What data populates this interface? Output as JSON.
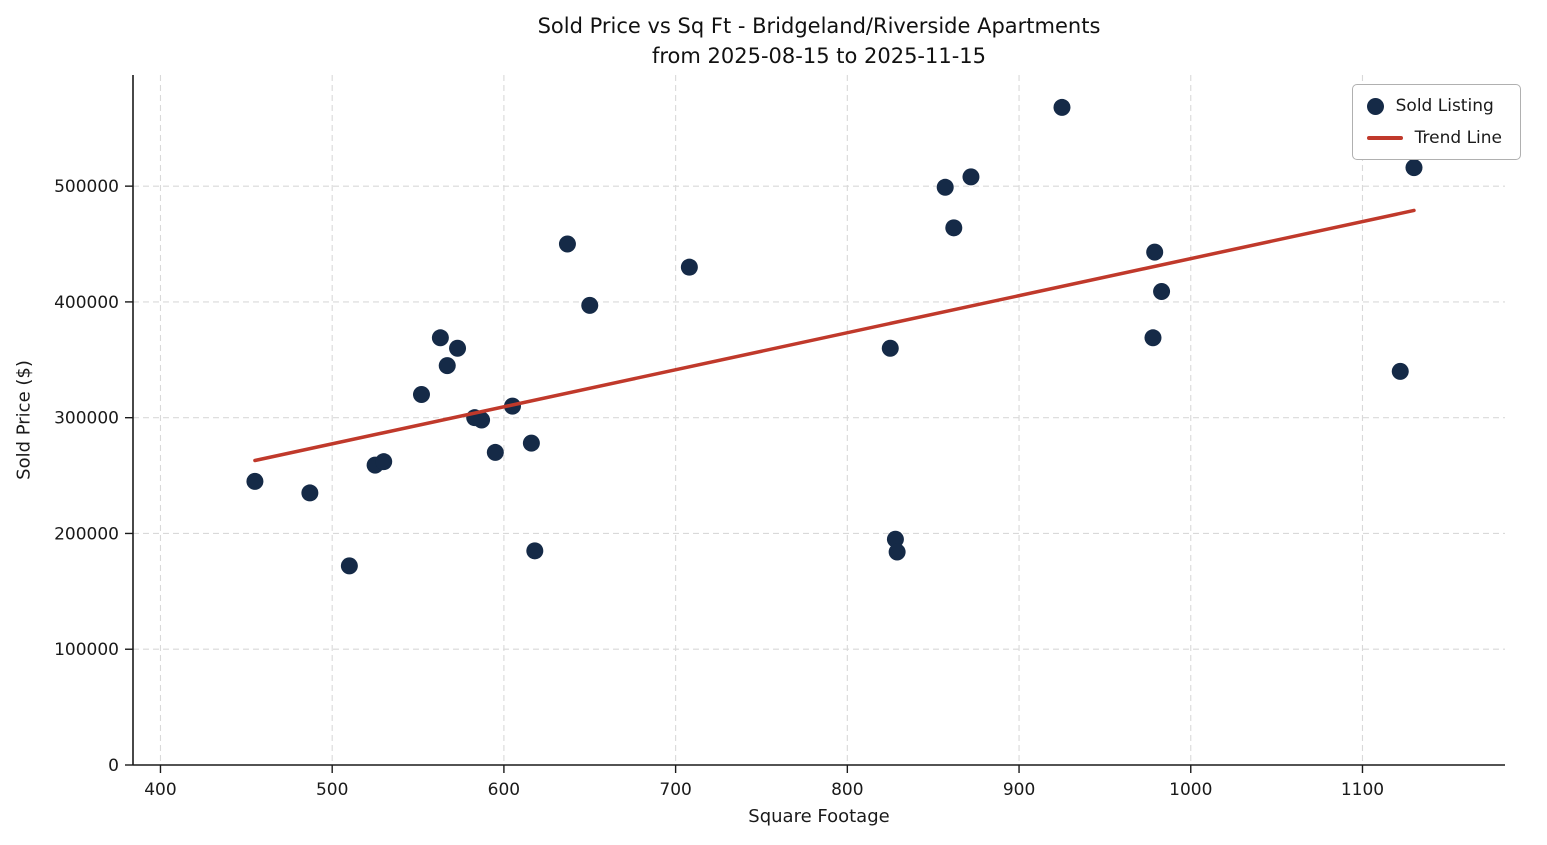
{
  "chart_data": {
    "type": "scatter",
    "title": "Sold Price vs Sq Ft - Bridgeland/Riverside Apartments",
    "subtitle": "from 2025-08-15 to 2025-11-15",
    "xlabel": "Square Footage",
    "ylabel": "Sold Price ($)",
    "xlim": [
      384,
      1183
    ],
    "ylim": [
      0,
      596000
    ],
    "x_ticks": [
      400,
      500,
      600,
      700,
      800,
      900,
      1000,
      1100
    ],
    "y_ticks": [
      0,
      100000,
      200000,
      300000,
      400000,
      500000
    ],
    "grid": "dashed",
    "legend": {
      "position": "upper right",
      "entries": [
        {
          "label": "Sold Listing",
          "type": "marker",
          "color": "#152a47"
        },
        {
          "label": "Trend Line",
          "type": "line",
          "color": "#c0392b"
        }
      ]
    },
    "series": [
      {
        "name": "Sold Listing",
        "type": "scatter",
        "color": "#152a47",
        "marker_radius": 8.5,
        "points": [
          [
            455,
            245000
          ],
          [
            487,
            235000
          ],
          [
            510,
            172000
          ],
          [
            525,
            259000
          ],
          [
            530,
            262000
          ],
          [
            552,
            320000
          ],
          [
            563,
            369000
          ],
          [
            567,
            345000
          ],
          [
            573,
            360000
          ],
          [
            583,
            300000
          ],
          [
            587,
            298000
          ],
          [
            595,
            270000
          ],
          [
            605,
            310000
          ],
          [
            616,
            278000
          ],
          [
            618,
            185000
          ],
          [
            637,
            450000
          ],
          [
            650,
            397000
          ],
          [
            708,
            430000
          ],
          [
            825,
            360000
          ],
          [
            828,
            195000
          ],
          [
            829,
            184000
          ],
          [
            857,
            499000
          ],
          [
            862,
            464000
          ],
          [
            872,
            508000
          ],
          [
            925,
            568000
          ],
          [
            978,
            369000
          ],
          [
            979,
            443000
          ],
          [
            983,
            409000
          ],
          [
            1122,
            340000
          ],
          [
            1130,
            516000
          ]
        ]
      },
      {
        "name": "Trend Line",
        "type": "line",
        "color": "#c0392b",
        "width": 3.5,
        "points": [
          [
            455,
            263000
          ],
          [
            1130,
            479000
          ]
        ]
      }
    ]
  }
}
